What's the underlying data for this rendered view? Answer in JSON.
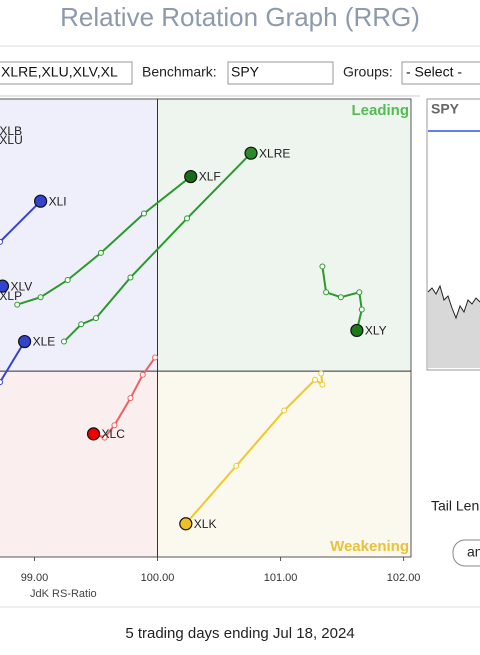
{
  "header": {
    "title": "Relative Rotation Graph (RRG)"
  },
  "controls": {
    "symbols": "XLRE,XLU,XLV,XL",
    "benchmark_label": "Benchmark:",
    "benchmark": "SPY",
    "groups_label": "Groups:",
    "groups": "- Select -"
  },
  "chart_data": {
    "type": "rrg",
    "xlabel": "JdK RS-Ratio",
    "xlim": [
      98.72,
      102.06
    ],
    "ylim": [
      98.49,
      102.21
    ],
    "center": [
      100,
      100
    ],
    "xticks": [
      {
        "value": 99,
        "label": "99.00"
      },
      {
        "value": 100,
        "label": "100.00"
      },
      {
        "value": 101,
        "label": "101.00"
      },
      {
        "value": 102,
        "label": "102.00"
      }
    ],
    "quadrants": {
      "leading": "Leading",
      "weakening": "Weakening"
    },
    "series": [
      {
        "name": "XLRE",
        "color": "#2a9a2a",
        "head": "#2a8a2a",
        "x": [
          99.24,
          99.38,
          99.5,
          99.78,
          100.24,
          100.76
        ],
        "values": [
          100.24,
          100.38,
          100.43,
          100.76,
          101.24,
          101.77
        ]
      },
      {
        "name": "XLF",
        "color": "#2a9a2a",
        "head": "#1a6a1a",
        "x": [
          98.86,
          99.05,
          99.27,
          99.54,
          99.89,
          100.27
        ],
        "values": [
          100.54,
          100.6,
          100.74,
          100.96,
          101.28,
          101.58
        ]
      },
      {
        "name": "XLY",
        "color": "#2a9a2a",
        "head": "#1a7a1a",
        "x": [
          101.34,
          101.37,
          101.49,
          101.64,
          101.66,
          101.62
        ],
        "values": [
          100.85,
          100.64,
          100.6,
          100.64,
          100.5,
          100.33
        ]
      },
      {
        "name": "XLK",
        "color": "#f0c828",
        "head": "#f0c020",
        "x": [
          101.33,
          101.34,
          101.28,
          101.03,
          100.64,
          100.23
        ],
        "values": [
          99.98,
          99.89,
          99.93,
          99.68,
          99.23,
          98.76
        ]
      },
      {
        "name": "XLC",
        "color": "#ee6060",
        "head": "#ee0000",
        "x": [
          99.98,
          99.88,
          99.78,
          99.65,
          99.57,
          99.48
        ],
        "values": [
          100.11,
          99.97,
          99.78,
          99.56,
          99.46,
          99.49
        ]
      },
      {
        "name": "XLI",
        "color": "#3344cc",
        "head": "#3344cc",
        "x": [
          98.72,
          99.05
        ],
        "values": [
          101.05,
          101.38
        ]
      },
      {
        "name": "XLV",
        "color": "#3344cc",
        "head": "#3344cc",
        "x": [
          98.74
        ],
        "values": [
          100.69
        ]
      },
      {
        "name": "XLE",
        "color": "#3344cc",
        "head": "#3344cc",
        "x": [
          98.72,
          98.92
        ],
        "values": [
          99.91,
          100.24
        ]
      },
      {
        "name": "XLB",
        "color": "#3344cc",
        "head": "#3344cc",
        "x": [
          98.65
        ],
        "values": [
          101.95
        ]
      },
      {
        "name": "XLU",
        "color": "#3344cc",
        "head": "#3344cc",
        "x": [
          98.65
        ],
        "values": [
          101.88
        ]
      },
      {
        "name": "XLP",
        "color": "#3344cc",
        "head": "#3344cc",
        "x": [
          98.65
        ],
        "values": [
          100.61
        ]
      }
    ]
  },
  "side_panel": {
    "symbol": "SPY",
    "tail_length_label": "Tail Len",
    "button": "an"
  },
  "footer": "5 trading days ending Jul 18, 2024"
}
